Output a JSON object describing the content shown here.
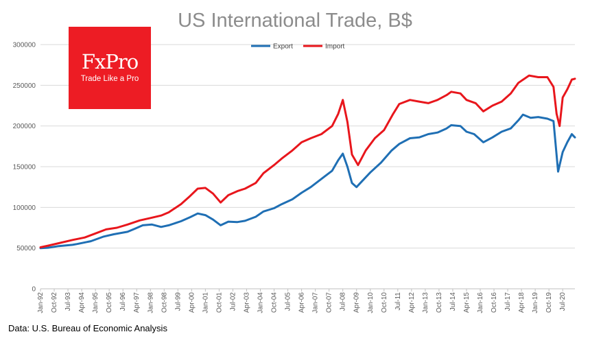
{
  "chart_data": {
    "type": "line",
    "title": "US International Trade, B$",
    "xlabel": "",
    "ylabel": "",
    "ylim": [
      0,
      300000
    ],
    "yticks": [
      "0",
      "50000",
      "100000",
      "150000",
      "200000",
      "250000",
      "300000"
    ],
    "xlim": [
      "1992-01",
      "2021-03"
    ],
    "xticks": [
      "Jan-92",
      "Oct-92",
      "Jul-93",
      "Apr-94",
      "Jan-95",
      "Oct-95",
      "Jul-96",
      "Apr-97",
      "Jan-98",
      "Oct-98",
      "Jul-99",
      "Apr-00",
      "Jan-01",
      "Oct-01",
      "Jul-02",
      "Apr-03",
      "Jan-04",
      "Oct-04",
      "Jul-05",
      "Apr-06",
      "Jan-07",
      "Oct-07",
      "Jul-08",
      "Apr-09",
      "Jan-10",
      "Oct-10",
      "Jul-11",
      "Apr-12",
      "Jan-13",
      "Oct-13",
      "Jul-14",
      "Apr-15",
      "Jan-16",
      "Oct-16",
      "Jul-17",
      "Apr-18",
      "Jan-19",
      "Oct-19",
      "Jul-20"
    ],
    "legend_position": "top-center",
    "series": [
      {
        "name": "Export",
        "color": "#1f6fb4",
        "points": [
          [
            "1992-01",
            50000
          ],
          [
            "1992-06",
            50500
          ],
          [
            "1993-01",
            52500
          ],
          [
            "1993-10",
            54000
          ],
          [
            "1994-01",
            55000
          ],
          [
            "1994-10",
            58500
          ],
          [
            "1995-06",
            64000
          ],
          [
            "1996-01",
            67000
          ],
          [
            "1996-10",
            70000
          ],
          [
            "1997-03",
            74000
          ],
          [
            "1997-08",
            78000
          ],
          [
            "1998-02",
            79000
          ],
          [
            "1998-08",
            76000
          ],
          [
            "1999-01",
            78000
          ],
          [
            "1999-09",
            83000
          ],
          [
            "2000-03",
            88000
          ],
          [
            "2000-08",
            92500
          ],
          [
            "2001-01",
            90500
          ],
          [
            "2001-06",
            85000
          ],
          [
            "2001-11",
            78000
          ],
          [
            "2002-04",
            82500
          ],
          [
            "2002-10",
            82000
          ],
          [
            "2003-03",
            83500
          ],
          [
            "2003-10",
            88500
          ],
          [
            "2004-03",
            95000
          ],
          [
            "2004-10",
            99000
          ],
          [
            "2005-03",
            104000
          ],
          [
            "2005-10",
            110000
          ],
          [
            "2006-04",
            118000
          ],
          [
            "2006-10",
            125000
          ],
          [
            "2007-05",
            135000
          ],
          [
            "2007-12",
            145000
          ],
          [
            "2008-04",
            158000
          ],
          [
            "2008-07",
            166000
          ],
          [
            "2008-10",
            150000
          ],
          [
            "2009-01",
            130000
          ],
          [
            "2009-04",
            125000
          ],
          [
            "2009-08",
            133000
          ],
          [
            "2010-01",
            143000
          ],
          [
            "2010-08",
            155000
          ],
          [
            "2011-03",
            170000
          ],
          [
            "2011-08",
            178000
          ],
          [
            "2012-03",
            185000
          ],
          [
            "2012-09",
            186000
          ],
          [
            "2013-03",
            190000
          ],
          [
            "2013-09",
            192000
          ],
          [
            "2014-03",
            197000
          ],
          [
            "2014-06",
            201000
          ],
          [
            "2014-12",
            200000
          ],
          [
            "2015-04",
            193000
          ],
          [
            "2015-09",
            190000
          ],
          [
            "2016-03",
            180000
          ],
          [
            "2016-09",
            186000
          ],
          [
            "2017-03",
            193000
          ],
          [
            "2017-09",
            197000
          ],
          [
            "2018-02",
            207000
          ],
          [
            "2018-05",
            214000
          ],
          [
            "2018-10",
            210000
          ],
          [
            "2019-03",
            211000
          ],
          [
            "2019-09",
            209000
          ],
          [
            "2020-01",
            206000
          ],
          [
            "2020-04",
            144000
          ],
          [
            "2020-07",
            168000
          ],
          [
            "2020-10",
            180000
          ],
          [
            "2021-01",
            190000
          ],
          [
            "2021-03",
            186000
          ]
        ]
      },
      {
        "name": "Import",
        "color": "#e8161c",
        "points": [
          [
            "1992-01",
            51000
          ],
          [
            "1992-06",
            53000
          ],
          [
            "1993-01",
            56000
          ],
          [
            "1993-10",
            60000
          ],
          [
            "1994-06",
            63000
          ],
          [
            "1995-01",
            68000
          ],
          [
            "1995-08",
            73000
          ],
          [
            "1996-03",
            75000
          ],
          [
            "1996-10",
            79000
          ],
          [
            "1997-06",
            84000
          ],
          [
            "1998-01",
            87000
          ],
          [
            "1998-08",
            90000
          ],
          [
            "1999-01",
            94000
          ],
          [
            "1999-09",
            104000
          ],
          [
            "2000-03",
            114000
          ],
          [
            "2000-08",
            123000
          ],
          [
            "2001-01",
            124000
          ],
          [
            "2001-06",
            117000
          ],
          [
            "2001-11",
            106000
          ],
          [
            "2002-04",
            115000
          ],
          [
            "2002-10",
            120000
          ],
          [
            "2003-03",
            123000
          ],
          [
            "2003-10",
            130000
          ],
          [
            "2004-03",
            142000
          ],
          [
            "2004-10",
            152000
          ],
          [
            "2005-03",
            160000
          ],
          [
            "2005-10",
            170000
          ],
          [
            "2006-04",
            180000
          ],
          [
            "2006-10",
            185000
          ],
          [
            "2007-05",
            190000
          ],
          [
            "2007-12",
            200000
          ],
          [
            "2008-04",
            215000
          ],
          [
            "2008-07",
            232000
          ],
          [
            "2008-10",
            205000
          ],
          [
            "2009-01",
            165000
          ],
          [
            "2009-05",
            152000
          ],
          [
            "2009-10",
            170000
          ],
          [
            "2010-04",
            185000
          ],
          [
            "2010-10",
            195000
          ],
          [
            "2011-04",
            215000
          ],
          [
            "2011-08",
            227000
          ],
          [
            "2012-03",
            232000
          ],
          [
            "2012-09",
            230000
          ],
          [
            "2013-03",
            228000
          ],
          [
            "2013-09",
            232000
          ],
          [
            "2014-03",
            238000
          ],
          [
            "2014-06",
            242000
          ],
          [
            "2014-12",
            240000
          ],
          [
            "2015-04",
            232000
          ],
          [
            "2015-10",
            228000
          ],
          [
            "2016-03",
            218000
          ],
          [
            "2016-09",
            225000
          ],
          [
            "2017-03",
            230000
          ],
          [
            "2017-09",
            240000
          ],
          [
            "2018-02",
            253000
          ],
          [
            "2018-09",
            262000
          ],
          [
            "2019-03",
            260000
          ],
          [
            "2019-09",
            260000
          ],
          [
            "2020-01",
            248000
          ],
          [
            "2020-03",
            215000
          ],
          [
            "2020-05",
            200000
          ],
          [
            "2020-07",
            235000
          ],
          [
            "2020-10",
            245000
          ],
          [
            "2021-01",
            257000
          ],
          [
            "2021-03",
            258000
          ]
        ]
      }
    ]
  },
  "logo": {
    "wordmark": "FxPro",
    "tagline": "Trade Like a Pro"
  },
  "source_note": "Data: U.S. Bureau of Economic Analysis"
}
